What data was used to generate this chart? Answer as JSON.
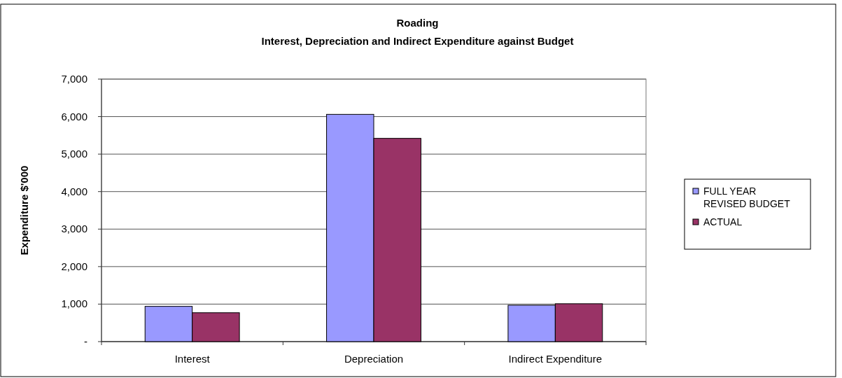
{
  "chart_data": {
    "type": "bar",
    "title": "Roading",
    "subtitle": "Interest, Depreciation and Indirect Expenditure against Budget",
    "ylabel": "Expenditure $'000",
    "categories": [
      "Interest",
      "Depreciation",
      "Indirect Expenditure"
    ],
    "series": [
      {
        "name": "FULL YEAR REVISED BUDGET",
        "color": "#9999ff",
        "values": [
          940,
          6060,
          970
        ]
      },
      {
        "name": "ACTUAL",
        "color": "#993366",
        "values": [
          770,
          5420,
          1010
        ]
      }
    ],
    "ylim": [
      0,
      7000
    ],
    "yticks": [
      {
        "value": 0,
        "label": "-"
      },
      {
        "value": 1000,
        "label": "1,000"
      },
      {
        "value": 2000,
        "label": "2,000"
      },
      {
        "value": 3000,
        "label": "3,000"
      },
      {
        "value": 4000,
        "label": "4,000"
      },
      {
        "value": 5000,
        "label": "5,000"
      },
      {
        "value": 6000,
        "label": "6,000"
      },
      {
        "value": 7000,
        "label": "7,000"
      }
    ],
    "grid": "y",
    "legend": "right"
  }
}
